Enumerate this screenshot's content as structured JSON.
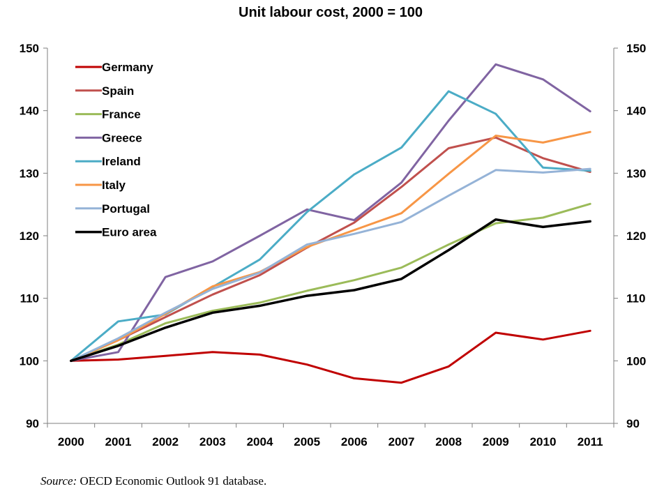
{
  "chart_data": {
    "type": "line",
    "title": "Unit labour cost, 2000 = 100",
    "x": [
      "2000",
      "2001",
      "2002",
      "2003",
      "2004",
      "2005",
      "2006",
      "2007",
      "2008",
      "2009",
      "2010",
      "2011"
    ],
    "ylim": [
      90,
      150
    ],
    "yticks": [
      90,
      100,
      110,
      120,
      130,
      140,
      150
    ],
    "y_axis_right_mirror": true,
    "grid": false,
    "legend_position": "top-left",
    "series": [
      {
        "name": "Germany",
        "color": "#C00000",
        "values": [
          100,
          100.2,
          100.8,
          101.4,
          101.0,
          99.4,
          97.2,
          96.5,
          99.1,
          104.5,
          103.4,
          104.8
        ]
      },
      {
        "name": "Spain",
        "color": "#C0504D",
        "values": [
          100,
          103.3,
          107.0,
          110.6,
          113.7,
          118.1,
          122.1,
          127.8,
          134.0,
          135.7,
          132.4,
          130.2
        ]
      },
      {
        "name": "France",
        "color": "#9BBB59",
        "values": [
          100,
          102.6,
          106.0,
          108.0,
          109.3,
          111.2,
          112.9,
          114.9,
          118.6,
          122.0,
          122.9,
          125.1
        ]
      },
      {
        "name": "Greece",
        "color": "#8064A2",
        "values": [
          100,
          101.4,
          113.4,
          115.9,
          120.0,
          124.2,
          122.5,
          128.5,
          138.4,
          147.4,
          145.0,
          139.9
        ]
      },
      {
        "name": "Ireland",
        "color": "#4BACC6",
        "values": [
          100,
          106.3,
          107.4,
          111.8,
          116.2,
          123.8,
          129.8,
          134.1,
          143.1,
          139.5,
          130.9,
          130.4
        ]
      },
      {
        "name": "Italy",
        "color": "#F79646",
        "values": [
          100,
          103.3,
          107.5,
          111.9,
          114.2,
          118.2,
          120.9,
          123.6,
          129.9,
          136.0,
          134.9,
          136.6
        ]
      },
      {
        "name": "Portugal",
        "color": "#95B3D7",
        "values": [
          100,
          103.6,
          107.7,
          111.5,
          114.1,
          118.6,
          120.3,
          122.2,
          126.4,
          130.5,
          130.1,
          130.7
        ]
      },
      {
        "name": "Euro area",
        "color": "#000000",
        "values": [
          100,
          102.4,
          105.3,
          107.7,
          108.8,
          110.4,
          111.3,
          113.1,
          117.7,
          122.6,
          121.4,
          122.3
        ]
      }
    ]
  },
  "source": {
    "label": "Source:",
    "text": " OECD Economic Outlook 91 database."
  }
}
